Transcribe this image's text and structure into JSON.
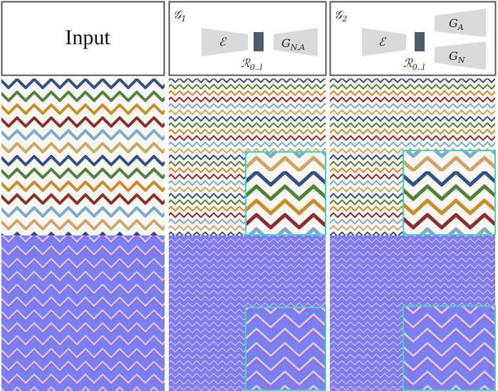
{
  "panels": [
    {
      "label": "Input"
    },
    {
      "title": {
        "symbol": "𝒢",
        "sub": "1"
      },
      "encoder": "ℰ",
      "latent": {
        "symbol": "ℛ",
        "sub": "0..l"
      },
      "decoder": {
        "symbol": "G",
        "sub": "N,A"
      }
    },
    {
      "title": {
        "symbol": "𝒢",
        "sub": "2"
      },
      "encoder": "ℰ",
      "latent": {
        "symbol": "ℛ",
        "sub": "0..l"
      },
      "decoders": [
        {
          "symbol": "G",
          "sub": "A"
        },
        {
          "symbol": "G",
          "sub": "N"
        }
      ]
    }
  ]
}
